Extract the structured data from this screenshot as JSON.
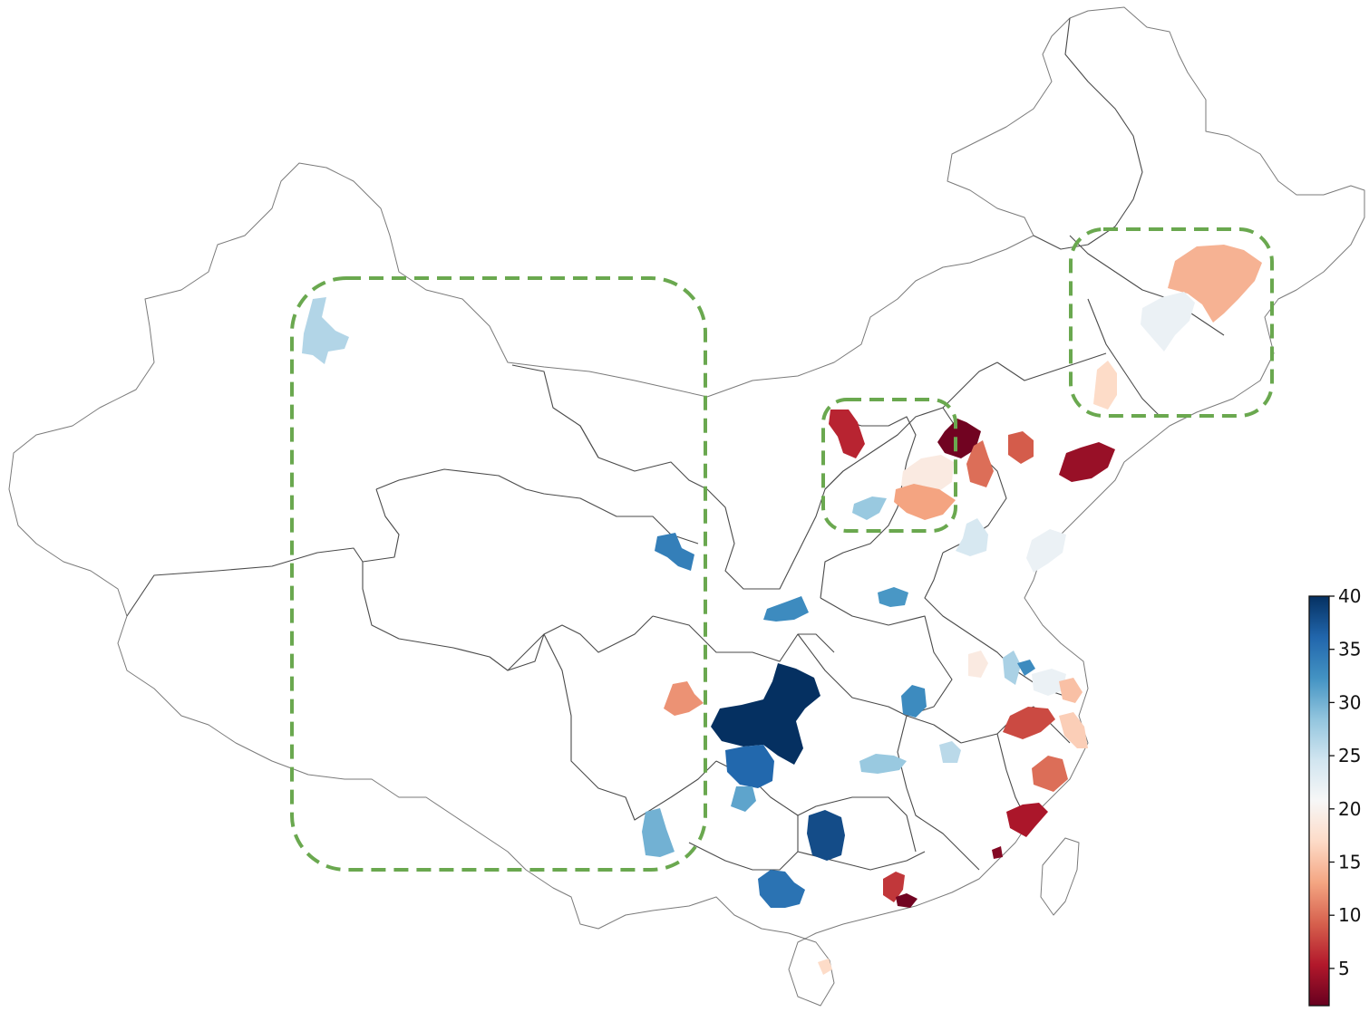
{
  "colorbar": {
    "min": 1.5,
    "max": 40,
    "ticks": [
      {
        "value": 5,
        "label": "5"
      },
      {
        "value": 10,
        "label": "10"
      },
      {
        "value": 15,
        "label": "15"
      },
      {
        "value": 20,
        "label": "20"
      },
      {
        "value": 25,
        "label": "25"
      },
      {
        "value": 30,
        "label": "30"
      },
      {
        "value": 35,
        "label": "35"
      },
      {
        "value": 40,
        "label": "40"
      }
    ],
    "colormap": "RdBu",
    "stops": [
      "#67001f",
      "#b2182b",
      "#d6604d",
      "#f4a582",
      "#fddbc7",
      "#f7f7f7",
      "#d1e5f0",
      "#92c5de",
      "#4393c3",
      "#2166ac",
      "#053061"
    ]
  },
  "regions": [
    {
      "id": "r-northwest-xinjiang",
      "value": 26.5
    },
    {
      "id": "r-qinghai-east",
      "value": 34
    },
    {
      "id": "r-sichuan-west",
      "value": 12
    },
    {
      "id": "r-yunnan-north",
      "value": 30
    },
    {
      "id": "r-chongqing",
      "value": 40
    },
    {
      "id": "r-guizhou-north",
      "value": 36
    },
    {
      "id": "r-guizhou-west",
      "value": 31
    },
    {
      "id": "r-guangxi",
      "value": 35
    },
    {
      "id": "r-hunan-west",
      "value": 38
    },
    {
      "id": "r-hunan-central",
      "value": 28
    },
    {
      "id": "r-jiangxi",
      "value": 26
    },
    {
      "id": "r-henan-south",
      "value": 33
    },
    {
      "id": "r-shaanxi-south",
      "value": 36
    },
    {
      "id": "r-henan-central",
      "value": 32
    },
    {
      "id": "r-hubei-east",
      "value": 33
    },
    {
      "id": "r-shanxi-north",
      "value": 6
    },
    {
      "id": "r-beijing",
      "value": 2
    },
    {
      "id": "r-hebei-central",
      "value": 19
    },
    {
      "id": "r-hebei-south",
      "value": 13
    },
    {
      "id": "r-shanxi-south",
      "value": 28
    },
    {
      "id": "r-tianjin",
      "value": 10
    },
    {
      "id": "r-tangshan",
      "value": 9
    },
    {
      "id": "r-dalian",
      "value": 4
    },
    {
      "id": "r-shandong-west",
      "value": 24
    },
    {
      "id": "r-shandong-east",
      "value": 22
    },
    {
      "id": "r-jilin-north",
      "value": 14
    },
    {
      "id": "r-jilin-central",
      "value": 22
    },
    {
      "id": "r-liaoning-north",
      "value": 17
    },
    {
      "id": "r-anhui",
      "value": 19
    },
    {
      "id": "r-jiangsu-north",
      "value": 27
    },
    {
      "id": "r-jiangsu-central",
      "value": 33
    },
    {
      "id": "r-jiangsu-south",
      "value": 22
    },
    {
      "id": "r-shanghai",
      "value": 15
    },
    {
      "id": "r-zhejiang-north",
      "value": 8
    },
    {
      "id": "r-zhejiang-east",
      "value": 16
    },
    {
      "id": "r-zhejiang-south",
      "value": 10
    },
    {
      "id": "r-fujian-north",
      "value": 5
    },
    {
      "id": "r-fujian-south",
      "value": 3
    },
    {
      "id": "r-guangdong",
      "value": 7
    },
    {
      "id": "r-shenzhen",
      "value": 2
    },
    {
      "id": "r-hainan",
      "value": 17
    }
  ]
}
